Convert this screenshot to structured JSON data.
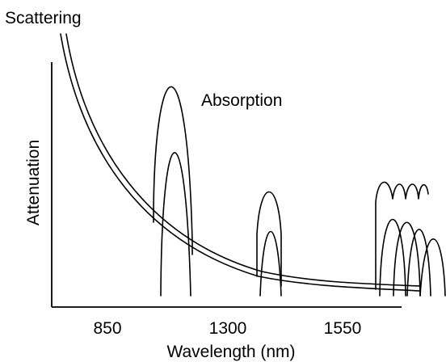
{
  "labels": {
    "scattering": "Scattering",
    "absorption": "Absorption",
    "y_axis": "Attenuation",
    "x_axis": "Wavelength (nm)"
  },
  "ticks": [
    "850",
    "1300",
    "1550"
  ],
  "colors": {
    "line": "#000000",
    "background": "#ffffff"
  }
}
